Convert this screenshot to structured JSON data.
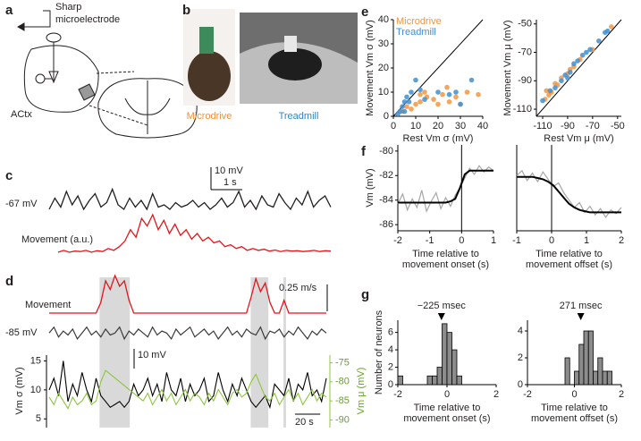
{
  "figure": {
    "panel_labels": [
      "a",
      "b",
      "c",
      "d",
      "e",
      "f",
      "g"
    ],
    "a": {
      "electrode": [
        "Sharp",
        "microelectrode"
      ],
      "region": "ACtx"
    },
    "b": {
      "photos": [
        "Microdrive",
        "Treadmill"
      ]
    }
  },
  "chart_data": [
    {
      "type": "trace",
      "xlim": [
        0,
        9
      ],
      "series": [
        {
          "label": "-67 mV",
          "color": "#231f20",
          "values": [
            -67,
            -62,
            -66,
            -59,
            -65,
            -61,
            -67,
            -63,
            -60,
            -66,
            -64,
            -58,
            -65,
            -67,
            -62,
            -66,
            -63,
            -67,
            -60,
            -66,
            -65,
            -67,
            -64,
            -66,
            -65,
            -63,
            -66,
            -64,
            -67,
            -65,
            -62,
            -66,
            -64,
            -59,
            -66,
            -63,
            -67,
            -61,
            -65,
            -66,
            -60,
            -64,
            -67,
            -62,
            -65,
            -59,
            -66,
            -63,
            -61,
            -66
          ]
        },
        {
          "label": "Movement (a.u.)",
          "color": "#e3151a",
          "values": [
            0,
            0.05,
            0,
            0.03,
            0.02,
            0.05,
            0,
            0.04,
            0.02,
            0.1,
            0.05,
            0.15,
            0.3,
            0.6,
            0.4,
            0.9,
            0.7,
            1,
            0.6,
            0.85,
            0.5,
            0.75,
            0.45,
            0.6,
            0.35,
            0.5,
            0.3,
            0.4,
            0.25,
            0.3,
            0.15,
            0.2,
            0.1,
            0.15,
            0.05,
            0.1,
            0.05,
            0.08,
            0.03,
            0.06,
            0.02,
            0.05,
            0.03,
            0.04,
            0.02,
            0.03,
            0.05,
            0.02,
            0.04,
            0.03
          ]
        }
      ],
      "scalebars": [
        {
          "value": 10,
          "label": "10 mV"
        },
        {
          "value": 1,
          "label": "1 s"
        }
      ]
    },
    {
      "type": "trace",
      "xlim": [
        0,
        220
      ],
      "movement_periods": [
        [
          40,
          64
        ],
        [
          160,
          174
        ],
        [
          186,
          188
        ]
      ],
      "series": [
        {
          "label": "Movement",
          "color": "#e3151a",
          "values": [
            0,
            0,
            0,
            0,
            0,
            0,
            0,
            0,
            0,
            0,
            0,
            0.1,
            0.3,
            0.22,
            0.35,
            0.25,
            0.3,
            0.12,
            0,
            0,
            0,
            0,
            0,
            0,
            0,
            0,
            0,
            0,
            0,
            0,
            0,
            0,
            0,
            0,
            0,
            0,
            0,
            0,
            0,
            0,
            0,
            0,
            0,
            0.15,
            0.32,
            0.2,
            0.28,
            0.1,
            0,
            0,
            0.12,
            0,
            0,
            0,
            0,
            0,
            0,
            0,
            0,
            0
          ]
        },
        {
          "label": "-85 mV",
          "color": "#3a3a3a",
          "values": [
            -85,
            -82,
            -87,
            -84,
            -86,
            -83,
            -88,
            -85,
            -82,
            -86,
            -84,
            -87,
            -83,
            -86,
            -85,
            -82,
            -88,
            -84,
            -86,
            -83,
            -85,
            -87,
            -82,
            -86,
            -84,
            -85,
            -88,
            -83,
            -86,
            -84,
            -82,
            -87,
            -85,
            -83,
            -86,
            -84,
            -88,
            -85,
            -82,
            -86,
            -84,
            -87,
            -83,
            -85,
            -86,
            -82,
            -88,
            -84,
            -85,
            -83,
            -87,
            -84,
            -86,
            -82,
            -85,
            -88,
            -84,
            -86,
            -83,
            -85
          ]
        }
      ],
      "scalebars": [
        {
          "value": 0.25,
          "label": "0.25 m/s"
        },
        {
          "value": 10,
          "label": "10 mV"
        },
        {
          "value": 20,
          "label": "20 s"
        }
      ],
      "vm_stats": {
        "ylabel": "Vm σ (mV)",
        "y2label": "Vm μ (mV)",
        "ylim": [
          3.5,
          16
        ],
        "yticks": [
          5,
          10,
          15
        ],
        "y2lim": [
          -92,
          -73
        ],
        "y2ticks": [
          -75,
          -80,
          -85,
          -90
        ],
        "series": [
          {
            "color": "#000000",
            "values": [
              10,
              12,
              9,
              15,
              8,
              11,
              9,
              13,
              10,
              8,
              12,
              9,
              8,
              7,
              7.5,
              8,
              7,
              8,
              11,
              9,
              10,
              12,
              9,
              11,
              8,
              13,
              10,
              9,
              12,
              8,
              11,
              9,
              10,
              12,
              8,
              9,
              13,
              10,
              8,
              11,
              9,
              12,
              10,
              8,
              7,
              8,
              9,
              7,
              11,
              10,
              9,
              12,
              8,
              11,
              10,
              13,
              9,
              10,
              8,
              12
            ]
          },
          {
            "color": "#8dc63f",
            "axis": "y2",
            "values": [
              -84,
              -86,
              -83,
              -85,
              -87,
              -84,
              -86,
              -85,
              -83,
              -86,
              -85,
              -80,
              -77,
              -78,
              -79,
              -80,
              -81,
              -82,
              -83,
              -84,
              -85,
              -83,
              -86,
              -84,
              -82,
              -85,
              -83,
              -86,
              -84,
              -82,
              -85,
              -83,
              -84,
              -86,
              -83,
              -85,
              -82,
              -84,
              -86,
              -83,
              -82,
              -84,
              -83,
              -80,
              -78,
              -81,
              -84,
              -85,
              -83,
              -86,
              -84,
              -82,
              -85,
              -83,
              -86,
              -84,
              -82,
              -85,
              -83,
              -84
            ]
          }
        ]
      }
    },
    {
      "type": "scatter",
      "xlabel": "Rest Vm σ (mV)",
      "ylabel": "Movement Vm σ (mV)",
      "xlim": [
        0,
        40
      ],
      "ylim": [
        0,
        40
      ],
      "xticks": [
        0,
        10,
        20,
        30,
        40
      ],
      "yticks": [
        0,
        10,
        20,
        30,
        40
      ],
      "series": [
        {
          "name": "Microdrive",
          "color": "#f3953f",
          "x": [
            8,
            10,
            12,
            15,
            18,
            20,
            22,
            25,
            28,
            30,
            33,
            38,
            14,
            6,
            4,
            24,
            12
          ],
          "values": [
            3,
            5,
            6,
            8,
            7,
            5,
            9,
            6,
            8,
            5,
            10,
            9,
            10,
            4,
            2,
            12,
            9
          ]
        },
        {
          "name": "Treadmill",
          "color": "#3f8fd2",
          "x": [
            2,
            3,
            4,
            5,
            6,
            7,
            8,
            10,
            12,
            14,
            20,
            25,
            30,
            35,
            28,
            5
          ],
          "values": [
            1,
            2,
            4,
            2,
            8,
            6,
            10,
            15,
            11,
            7,
            10,
            9,
            5,
            15,
            10,
            6
          ]
        }
      ]
    },
    {
      "type": "scatter",
      "xlabel": "Rest Vm μ (mV)",
      "ylabel": "Movement Vm μ (mV)",
      "xlim": [
        -115,
        -47
      ],
      "ylim": [
        -115,
        -47
      ],
      "xticks": [
        -110,
        -90,
        -70,
        -50
      ],
      "yticks": [
        -50,
        -70,
        -90,
        -110
      ],
      "series": [
        {
          "color": "#f3953f",
          "x": [
            -108,
            -105,
            -103,
            -100,
            -95,
            -90,
            -85,
            -80,
            -70,
            -55,
            -107,
            -98,
            -88
          ],
          "values": [
            -103,
            -100,
            -98,
            -92,
            -88,
            -85,
            -80,
            -75,
            -68,
            -52,
            -97,
            -93,
            -82
          ]
        },
        {
          "color": "#3f8fd2",
          "x": [
            -110,
            -104,
            -100,
            -95,
            -92,
            -88,
            -85,
            -82,
            -78,
            -75,
            -72,
            -65,
            -60,
            -58,
            -90
          ],
          "values": [
            -104,
            -97,
            -95,
            -90,
            -86,
            -84,
            -78,
            -76,
            -72,
            -70,
            -68,
            -62,
            -56,
            -55,
            -88
          ]
        }
      ]
    },
    {
      "type": "line",
      "xlabel": [
        "Time relative to",
        "movement onset (s)"
      ],
      "ylabel": "Vm (mV)",
      "xlim": [
        -2,
        1
      ],
      "ylim": [
        -86.5,
        -79.5
      ],
      "xticks": [
        -2,
        -1,
        0,
        1
      ],
      "yticks": [
        -80,
        -82,
        -84,
        -86
      ],
      "x": [
        -2,
        -1.85,
        -1.7,
        -1.55,
        -1.4,
        -1.25,
        -1.1,
        -0.95,
        -0.8,
        -0.65,
        -0.5,
        -0.35,
        -0.2,
        -0.05,
        0.1,
        0.25,
        0.4,
        0.55,
        0.7,
        0.85,
        1
      ],
      "series": [
        {
          "color": "#a6a6a6",
          "values": [
            -84.3,
            -83.5,
            -84.8,
            -83.9,
            -84.6,
            -83.2,
            -84.9,
            -84.1,
            -83.4,
            -84.7,
            -83.8,
            -84.5,
            -83.6,
            -83.0,
            -82.2,
            -81.4,
            -81.9,
            -81.2,
            -81.7,
            -81.3,
            -81.6
          ]
        },
        {
          "color": "#000000",
          "values": [
            -84.2,
            -84.2,
            -84.2,
            -84.2,
            -84.2,
            -84.2,
            -84.2,
            -84.2,
            -84.2,
            -84.2,
            -84.2,
            -84.1,
            -83.9,
            -83.0,
            -81.9,
            -81.6,
            -81.6,
            -81.6,
            -81.6,
            -81.6,
            -81.6
          ]
        }
      ]
    },
    {
      "type": "line",
      "xlabel": [
        "Time relative to",
        "movement offset (s)"
      ],
      "xlim": [
        -1,
        2
      ],
      "ylim": [
        -86.5,
        -79.5
      ],
      "xticks": [
        -1,
        0,
        1,
        2
      ],
      "x": [
        -1,
        -0.85,
        -0.7,
        -0.55,
        -0.4,
        -0.25,
        -0.1,
        0.05,
        0.2,
        0.35,
        0.5,
        0.65,
        0.8,
        0.95,
        1.1,
        1.25,
        1.4,
        1.55,
        1.7,
        1.85,
        2
      ],
      "series": [
        {
          "color": "#a6a6a6",
          "values": [
            -82.0,
            -81.6,
            -82.4,
            -81.8,
            -82.5,
            -81.7,
            -82.3,
            -82.9,
            -82.6,
            -83.4,
            -84.0,
            -84.6,
            -84.2,
            -85.0,
            -84.5,
            -85.2,
            -84.7,
            -85.4,
            -84.8,
            -85.1,
            -84.6
          ]
        },
        {
          "color": "#000000",
          "values": [
            -82.1,
            -82.1,
            -82.1,
            -82.1,
            -82.2,
            -82.3,
            -82.5,
            -82.8,
            -83.3,
            -83.8,
            -84.3,
            -84.6,
            -84.8,
            -84.9,
            -85.0,
            -85.0,
            -85.0,
            -85.0,
            -85.0,
            -85.0,
            -85.0
          ]
        }
      ]
    },
    {
      "type": "histogram",
      "xlabel": [
        "Time relative to",
        "movement onset (s)"
      ],
      "ylabel": "Number of neurons",
      "bins": [
        -2,
        -1.8,
        -1.6,
        -1.4,
        -1.2,
        -1,
        -0.8,
        -0.6,
        -0.4,
        -0.2,
        0,
        0.2,
        0.4,
        0.6
      ],
      "values": [
        1,
        0,
        0,
        0,
        0,
        0,
        1,
        1,
        2,
        7,
        6,
        4,
        1
      ],
      "color": "#8c8c8c",
      "xlim": [
        -2,
        2
      ],
      "ylim": [
        0,
        7.4
      ],
      "xticks": [
        -2,
        0,
        2
      ],
      "yticks": [
        0,
        2,
        4,
        6
      ],
      "annotation": {
        "label": "−225 msec",
        "x": -0.225
      }
    },
    {
      "type": "histogram",
      "xlabel": [
        "Time relative to",
        "movement offset (s)"
      ],
      "bins": [
        -0.4,
        -0.2,
        0,
        0.2,
        0.4,
        0.6,
        0.8,
        1,
        1.2,
        1.4,
        1.6
      ],
      "values": [
        2,
        0,
        1,
        3,
        4,
        4,
        1,
        2,
        1,
        1
      ],
      "color": "#8c8c8c",
      "xlim": [
        -2,
        2
      ],
      "ylim": [
        0,
        4.8
      ],
      "xticks": [
        -2,
        0,
        2
      ],
      "yticks": [
        0,
        2,
        4
      ],
      "annotation": {
        "label": "271 msec",
        "x": 0.271
      }
    }
  ]
}
